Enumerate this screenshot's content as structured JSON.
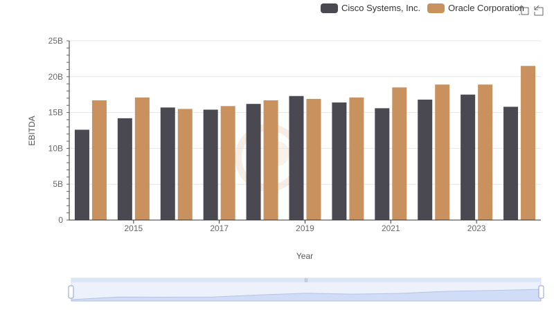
{
  "legend": {
    "items": [
      {
        "label": "Cisco Systems, Inc.",
        "color": "#4a4951"
      },
      {
        "label": "Oracle Corporation",
        "color": "#c8915e"
      }
    ]
  },
  "toolbox": {
    "icons": [
      "zoom-select-icon",
      "zoom-reset-icon"
    ]
  },
  "chart_data": {
    "type": "bar",
    "title": "",
    "xlabel": "Year",
    "ylabel": "EBITDA",
    "categories": [
      "2014",
      "2015",
      "2016",
      "2017",
      "2018",
      "2019",
      "2020",
      "2021",
      "2022",
      "2023",
      "2024"
    ],
    "x_tick_labels": [
      "2015",
      "2017",
      "2019",
      "2021",
      "2023"
    ],
    "y_tick_labels": [
      "0",
      "5B",
      "10B",
      "15B",
      "20B",
      "25B"
    ],
    "ylim": [
      0,
      25
    ],
    "y_unit": "B",
    "grid": true,
    "legend_position": "top-right",
    "series": [
      {
        "name": "Cisco Systems, Inc.",
        "color": "#4a4951",
        "values": [
          12.6,
          14.2,
          15.7,
          15.4,
          16.2,
          17.3,
          16.4,
          15.6,
          16.8,
          17.5,
          15.8
        ]
      },
      {
        "name": "Oracle Corporation",
        "color": "#c8915e",
        "values": [
          16.7,
          17.1,
          15.5,
          15.9,
          16.7,
          16.9,
          17.1,
          18.5,
          18.9,
          18.9,
          21.5
        ]
      }
    ]
  }
}
